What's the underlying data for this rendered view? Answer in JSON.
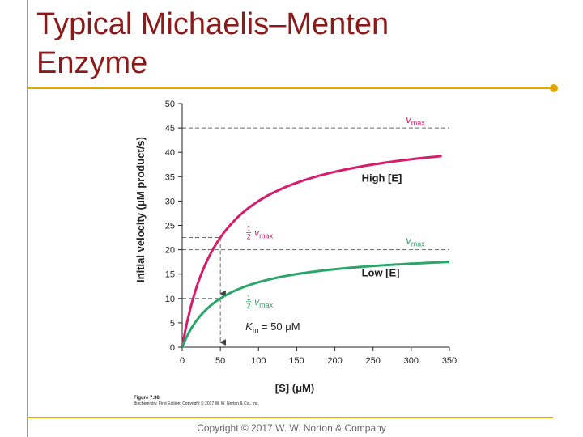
{
  "slide": {
    "title_line1": "Typical Michaelis–Menten",
    "title_line2": "Enzyme",
    "copyright": "Copyright © 2017 W. W. Norton & Company",
    "figure_label": "Figure 7.38",
    "figure_credit": "Biochemistry, First Edition, Copyright © 2017 W. W. Norton & Co., Inc.",
    "accent_color": "#e3a800",
    "title_color": "#8b1a1a"
  },
  "chart_data": {
    "type": "line",
    "title": "",
    "xlabel": "[S] (μM)",
    "ylabel": "Initial velocity (μM product/s)",
    "xlim": [
      0,
      350
    ],
    "ylim": [
      0,
      50
    ],
    "xticks": [
      0,
      50,
      100,
      150,
      200,
      250,
      300,
      350
    ],
    "yticks": [
      0,
      5,
      10,
      15,
      20,
      25,
      30,
      35,
      40,
      45,
      50
    ],
    "Km": 50,
    "series": [
      {
        "name": "High [E]",
        "vmax": 45,
        "color": "#d81b6a",
        "x": [
          0,
          10,
          25,
          50,
          100,
          150,
          200,
          250,
          300,
          340
        ],
        "values": [
          0,
          7.5,
          15,
          22.5,
          30,
          33.75,
          36,
          37.5,
          38.57,
          39.23
        ]
      },
      {
        "name": "Low [E]",
        "vmax": 20,
        "color": "#2aa66a",
        "x": [
          0,
          10,
          25,
          50,
          100,
          150,
          200,
          250,
          300,
          350
        ],
        "values": [
          0,
          3.33,
          6.67,
          10,
          13.33,
          15,
          16,
          16.67,
          17.14,
          17.5
        ]
      }
    ],
    "annotations": {
      "vmax_symbol": "v",
      "vmax_subscript": "max",
      "half_numerator": "1",
      "half_denominator": "2",
      "km_symbol": "K",
      "km_subscript": "m",
      "km_value_text": " = 50 μM"
    }
  }
}
